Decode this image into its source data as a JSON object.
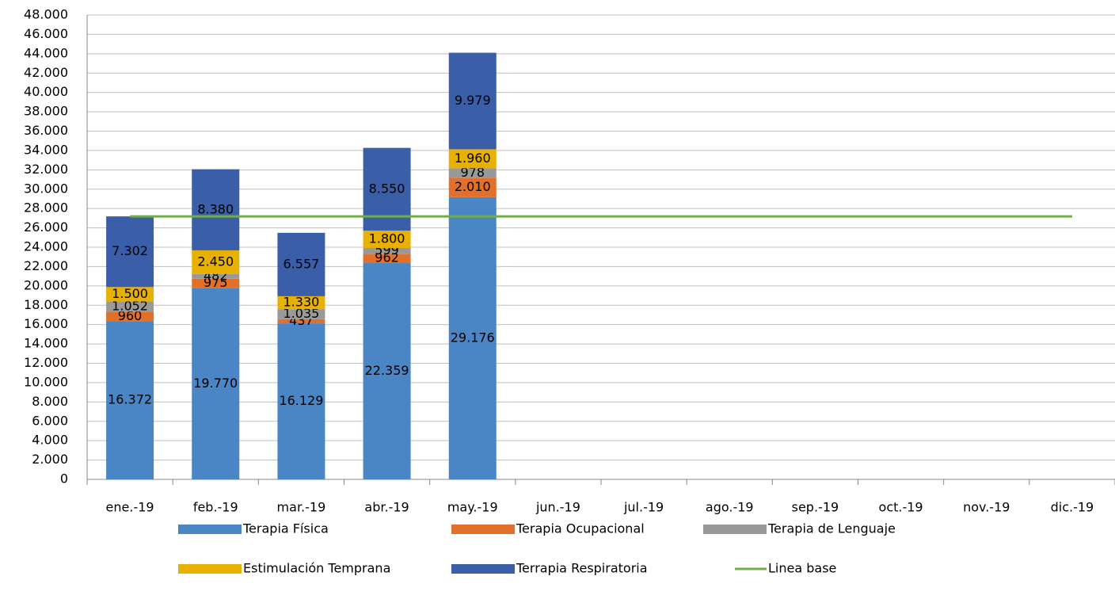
{
  "chart_data": {
    "type": "bar",
    "stacked": true,
    "categories": [
      "ene.-19",
      "feb.-19",
      "mar.-19",
      "abr.-19",
      "may.-19",
      "jun.-19",
      "jul.-19",
      "ago.-19",
      "sep.-19",
      "oct.-19",
      "nov.-19",
      "dic.-19"
    ],
    "series": [
      {
        "name": "Terapia Física",
        "color": "#4a86c5",
        "values": [
          16372,
          19770,
          16129,
          22359,
          29176,
          null,
          null,
          null,
          null,
          null,
          null,
          null
        ],
        "value_labels": [
          "16.372",
          "19.770",
          "16.129",
          "22.359",
          "29.176",
          null,
          null,
          null,
          null,
          null,
          null,
          null
        ]
      },
      {
        "name": "Terapia Ocupacional",
        "color": "#e0702a",
        "values": [
          960,
          975,
          437,
          962,
          2010,
          null,
          null,
          null,
          null,
          null,
          null,
          null
        ],
        "value_labels": [
          "960",
          "975",
          "437",
          "962",
          "2.010",
          null,
          null,
          null,
          null,
          null,
          null,
          null
        ]
      },
      {
        "name": "Terapia de Lenguaje",
        "color": "#999999",
        "values": [
          1052,
          482,
          1035,
          599,
          978,
          null,
          null,
          null,
          null,
          null,
          null,
          null
        ],
        "value_labels": [
          "1.052",
          "482",
          "1.035",
          "599",
          "978",
          null,
          null,
          null,
          null,
          null,
          null,
          null
        ]
      },
      {
        "name": "Estimulación Temprana",
        "color": "#e8b000",
        "values": [
          1500,
          2450,
          1330,
          1800,
          1960,
          null,
          null,
          null,
          null,
          null,
          null,
          null
        ],
        "value_labels": [
          "1.500",
          "2.450",
          "1.330",
          "1.800",
          "1.960",
          null,
          null,
          null,
          null,
          null,
          null,
          null
        ]
      },
      {
        "name": "Terrapia Respiratoria",
        "color": "#3b5ea8",
        "values": [
          7302,
          8380,
          6557,
          8550,
          9979,
          null,
          null,
          null,
          null,
          null,
          null,
          null
        ],
        "value_labels": [
          "7.302",
          "8.380",
          "6.557",
          "8.550",
          "9.979",
          null,
          null,
          null,
          null,
          null,
          null,
          null
        ]
      },
      {
        "name": "Linea base",
        "type": "line",
        "color": "#70ad47",
        "values": [
          27186,
          27186,
          27186,
          27186,
          27186,
          27186,
          27186,
          27186,
          27186,
          27186,
          27186,
          27186
        ]
      }
    ],
    "ylim": [
      0,
      48000
    ],
    "yticks": [
      0,
      {
        "value": 2000,
        "label": "2.000"
      },
      {
        "value": 4000,
        "label": "4.000"
      },
      {
        "value": 6000,
        "label": "6.000"
      },
      {
        "value": 8000,
        "label": "8.000"
      },
      {
        "value": 10000,
        "label": "10.000"
      },
      {
        "value": 12000,
        "label": "12.000"
      },
      {
        "value": 14000,
        "label": "14.000"
      },
      {
        "value": 16000,
        "label": "16.000"
      },
      {
        "value": 18000,
        "label": "18.000"
      },
      {
        "value": 20000,
        "label": "20.000"
      },
      {
        "value": 22000,
        "label": "22.000"
      },
      {
        "value": 24000,
        "label": "24.000"
      },
      {
        "value": 26000,
        "label": "26.000"
      },
      {
        "value": 28000,
        "label": "28.000"
      },
      {
        "value": 30000,
        "label": "30.000"
      },
      {
        "value": 32000,
        "label": "32.000"
      },
      {
        "value": 34000,
        "label": "34.000"
      },
      {
        "value": 36000,
        "label": "36.000"
      },
      {
        "value": 38000,
        "label": "38.000"
      },
      {
        "value": 40000,
        "label": "40.000"
      },
      {
        "value": 42000,
        "label": "42.000"
      },
      {
        "value": 44000,
        "label": "44.000"
      },
      {
        "value": 46000,
        "label": "46.000"
      },
      {
        "value": 48000,
        "label": "48.000"
      }
    ],
    "grid": true,
    "legend": "bottom"
  }
}
